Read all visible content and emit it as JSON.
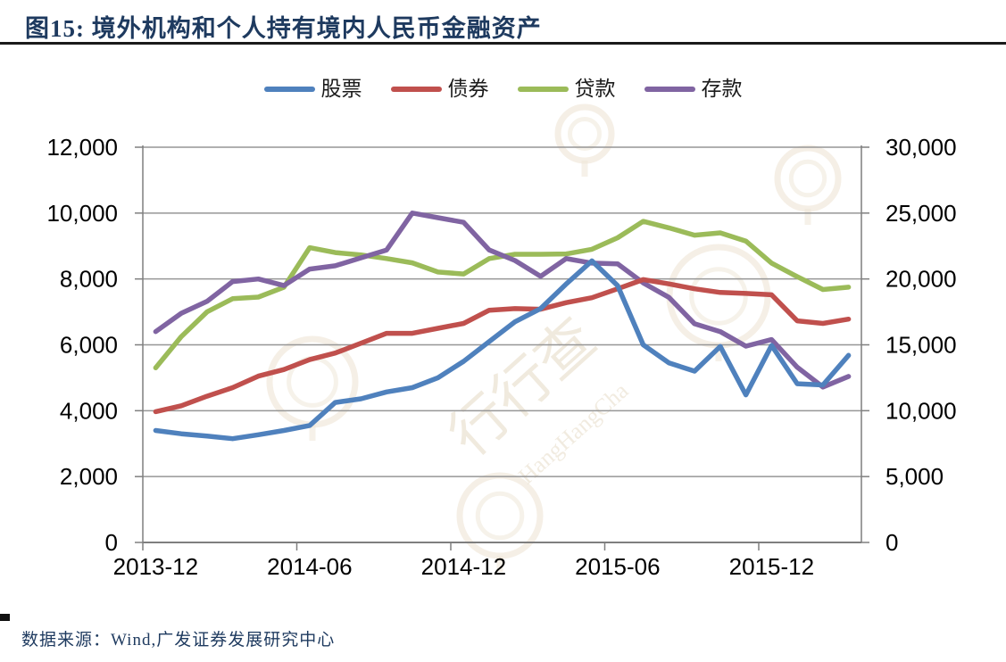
{
  "page": {
    "title": "图15:  境外机构和个人持有境内人民币金融资产",
    "source": "数据来源：Wind,广发证券发展研究中心",
    "watermark_cn": "行行查",
    "watermark_en": "HangHangCha"
  },
  "chart_data": {
    "type": "line",
    "title": "境外机构和个人持有境内人民币金融资产",
    "grid": true,
    "legend_position": "top",
    "categories": [
      "2013-12",
      "2014-01",
      "2014-02",
      "2014-03",
      "2014-04",
      "2014-05",
      "2014-06",
      "2014-07",
      "2014-08",
      "2014-09",
      "2014-10",
      "2014-11",
      "2014-12",
      "2015-01",
      "2015-02",
      "2015-03",
      "2015-04",
      "2015-05",
      "2015-06",
      "2015-07",
      "2015-08",
      "2015-09",
      "2015-10",
      "2015-11",
      "2015-12",
      "2016-01",
      "2016-02",
      "2016-03"
    ],
    "x_tick_labels": [
      {
        "label": "2013-12",
        "index": 0
      },
      {
        "label": "2014-06",
        "index": 6
      },
      {
        "label": "2014-12",
        "index": 12
      },
      {
        "label": "2015-06",
        "index": 18
      },
      {
        "label": "2015-12",
        "index": 24
      }
    ],
    "left_axis": {
      "min": 0,
      "max": 12000,
      "step": 2000,
      "tick_labels_top_down": [
        "12,000",
        "10,000",
        "8,000",
        "6,000",
        "4,000",
        "2,000",
        "0"
      ]
    },
    "right_axis": {
      "min": 0,
      "max": 30000,
      "step": 5000,
      "tick_labels_top_down": [
        "30,000",
        "25,000",
        "20,000",
        "15,000",
        "10,000",
        "5,000",
        "0"
      ]
    },
    "series": [
      {
        "key": "stocks",
        "name": "股票",
        "color": "#4F81BD",
        "axis": "left",
        "values": [
          3400,
          3300,
          3230,
          3150,
          3270,
          3400,
          3550,
          4250,
          4360,
          4570,
          4700,
          5000,
          5500,
          6100,
          6700,
          7100,
          7850,
          8550,
          7800,
          6000,
          5450,
          5200,
          5950,
          4480,
          5980,
          4820,
          4780,
          5680
        ]
      },
      {
        "key": "bonds",
        "name": "债券",
        "color": "#C0504D",
        "axis": "left",
        "values": [
          3970,
          4150,
          4440,
          4700,
          5050,
          5250,
          5550,
          5750,
          6050,
          6350,
          6350,
          6500,
          6650,
          7050,
          7100,
          7080,
          7280,
          7430,
          7700,
          7980,
          7850,
          7700,
          7590,
          7560,
          7520,
          6730,
          6650,
          6780
        ]
      },
      {
        "key": "loans",
        "name": "贷款",
        "color": "#9BBB59",
        "axis": "left",
        "values": [
          5300,
          6250,
          7000,
          7400,
          7450,
          7750,
          8950,
          8800,
          8730,
          8620,
          8490,
          8210,
          8150,
          8620,
          8750,
          8750,
          8760,
          8900,
          9250,
          9750,
          9550,
          9330,
          9400,
          9150,
          8480,
          8070,
          7680,
          7750
        ]
      },
      {
        "key": "deposits",
        "name": "存款",
        "color": "#8064A2",
        "axis": "right",
        "values": [
          16000,
          17400,
          18300,
          19800,
          20000,
          19500,
          20750,
          21000,
          21600,
          22200,
          25000,
          24650,
          24300,
          22200,
          21400,
          20200,
          21550,
          21200,
          21150,
          19700,
          18600,
          16600,
          16000,
          14900,
          15400,
          13300,
          11800,
          12600
        ]
      }
    ]
  }
}
